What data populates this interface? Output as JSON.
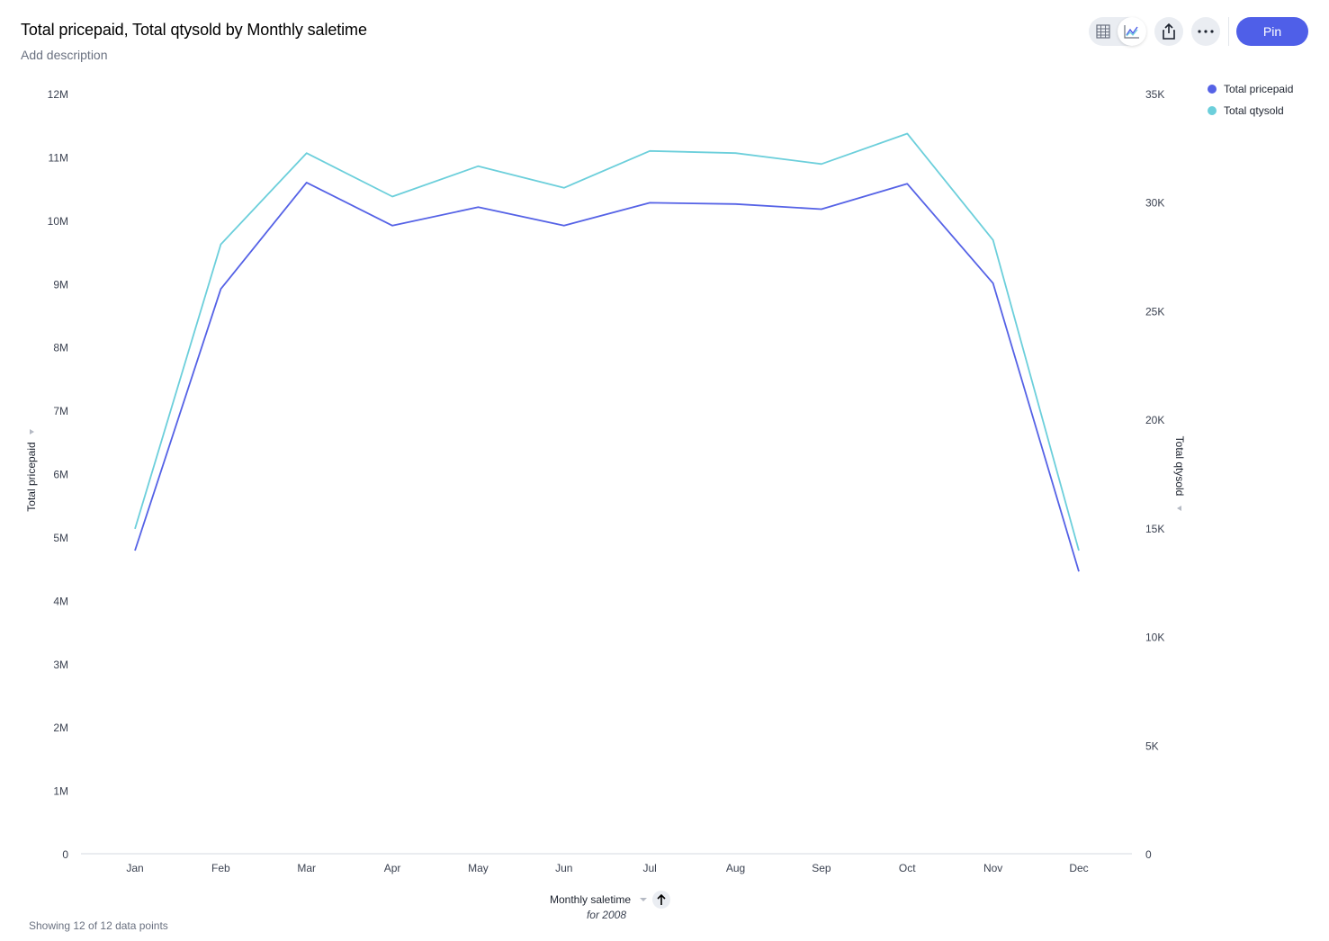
{
  "header": {
    "title": "Total pricepaid, Total qtysold by Monthly saletime",
    "description": "Add description",
    "pin_label": "Pin"
  },
  "toolbar": {
    "icons": [
      "table-view-icon",
      "chart-view-icon",
      "share-icon",
      "more-icon"
    ]
  },
  "footer": {
    "status": "Showing 12 of 12 data points"
  },
  "colors": {
    "accent": "#4f5fe8",
    "series1": "#5562e6",
    "series2": "#6ccfdb",
    "axis": "#d5d9e0",
    "tick": "#3b4251"
  },
  "chart_data": {
    "type": "line",
    "title": "Total pricepaid, Total qtysold by Monthly saletime",
    "xlabel": "Monthly saletime",
    "xlabel_sub": "for 2008",
    "ylabel": "Total pricepaid",
    "y2label": "Total qtysold",
    "categories": [
      "Jan",
      "Feb",
      "Mar",
      "Apr",
      "May",
      "Jun",
      "Jul",
      "Aug",
      "Sep",
      "Oct",
      "Nov",
      "Dec"
    ],
    "ylim": [
      0,
      12000000
    ],
    "y_ticks": [
      0,
      1000000,
      2000000,
      3000000,
      4000000,
      5000000,
      6000000,
      7000000,
      8000000,
      9000000,
      10000000,
      11000000,
      12000000
    ],
    "y_tick_labels": [
      "0",
      "1M",
      "2M",
      "3M",
      "4M",
      "5M",
      "6M",
      "7M",
      "8M",
      "9M",
      "10M",
      "11M",
      "12M"
    ],
    "y2lim": [
      0,
      35000
    ],
    "y2_ticks": [
      0,
      5000,
      10000,
      15000,
      20000,
      25000,
      30000,
      35000
    ],
    "y2_tick_labels": [
      "0",
      "5K",
      "10K",
      "15K",
      "20K",
      "25K",
      "30K",
      "35K"
    ],
    "legend": "top-right",
    "grid": false,
    "series": [
      {
        "name": "Total pricepaid",
        "axis": "left",
        "values": [
          4800000,
          8930000,
          10610000,
          9930000,
          10220000,
          9930000,
          10290000,
          10270000,
          10190000,
          10590000,
          9020000,
          4470000
        ]
      },
      {
        "name": "Total qtysold",
        "axis": "right",
        "values": [
          15000,
          28100,
          32300,
          30300,
          31700,
          30700,
          32400,
          32300,
          31800,
          33200,
          28300,
          14000
        ]
      }
    ]
  }
}
